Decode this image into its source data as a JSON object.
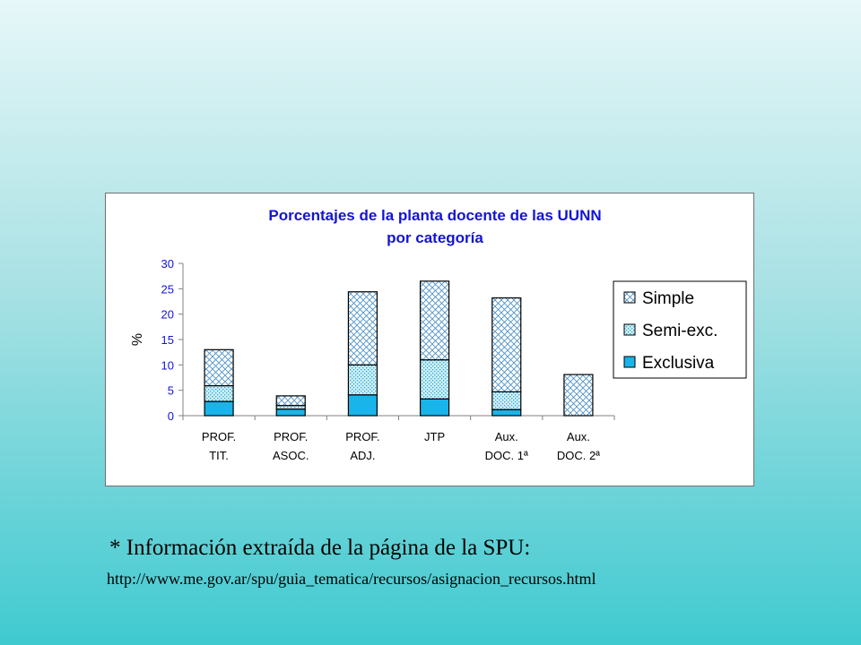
{
  "colors": {
    "simple": "#ffffff",
    "simple_hatch": "#4a8fc4",
    "semi": "#d0f0f6",
    "semi_dots": "#2aa7d6",
    "exclusiva": "#18b4ea",
    "title": "#1414d4",
    "axis_text": "#1414d4"
  },
  "chart_data": {
    "type": "bar",
    "stacked": true,
    "title": "Porcentajes de la planta docente de las UUNN por categoría",
    "title_lines": [
      "Porcentajes de la planta docente de las UUNN",
      "por categoría"
    ],
    "ylabel": "%",
    "xlabel": "",
    "ylim": [
      0,
      30
    ],
    "yticks": [
      0,
      5,
      10,
      15,
      20,
      25,
      30
    ],
    "grid": false,
    "legend_position": "right",
    "categories": [
      [
        "PROF.",
        "TIT."
      ],
      [
        "PROF.",
        "ASOC."
      ],
      [
        "PROF.",
        "ADJ."
      ],
      [
        "JTP"
      ],
      [
        "Aux.",
        "DOC. 1ª"
      ],
      [
        "Aux.",
        "DOC. 2ª"
      ]
    ],
    "series": [
      {
        "name": "Exclusiva",
        "values": [
          2.8,
          1.3,
          4.1,
          3.3,
          1.2,
          0
        ]
      },
      {
        "name": "Semi-exc.",
        "values": [
          3.1,
          0.7,
          5.9,
          7.7,
          3.5,
          0
        ]
      },
      {
        "name": "Simple",
        "values": [
          7.1,
          1.9,
          14.4,
          15.5,
          18.5,
          8.1
        ]
      }
    ],
    "legend_order": [
      "Simple",
      "Semi-exc.",
      "Exclusiva"
    ]
  },
  "footer": {
    "note": "* Información extraída de la página de la SPU:",
    "url": "http://www.me.gov.ar/spu/guia_tematica/recursos/asignacion_recursos.html"
  }
}
